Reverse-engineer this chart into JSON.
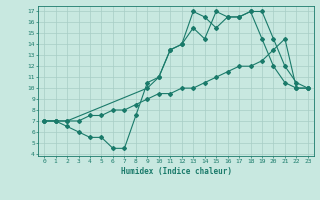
{
  "line1_x": [
    0,
    1,
    2,
    3,
    4,
    5,
    6,
    7,
    8,
    9,
    10,
    11,
    12,
    13,
    14,
    15,
    16,
    17,
    18,
    19,
    20,
    21,
    22,
    23
  ],
  "line1_y": [
    7,
    7,
    6.5,
    6,
    5.5,
    5.5,
    4.5,
    4.5,
    7.5,
    10.5,
    11,
    13.5,
    14,
    15.5,
    14.5,
    17,
    16.5,
    16.5,
    17,
    14.5,
    12,
    10.5,
    10,
    10
  ],
  "line2_x": [
    0,
    1,
    2,
    3,
    4,
    5,
    6,
    7,
    8,
    9,
    10,
    11,
    12,
    13,
    14,
    15,
    16,
    17,
    18,
    19,
    20,
    21,
    22,
    23
  ],
  "line2_y": [
    7,
    7,
    7,
    7,
    7.5,
    7.5,
    8,
    8,
    8.5,
    9,
    9.5,
    9.5,
    10,
    10,
    10.5,
    11,
    11.5,
    12,
    12,
    12.5,
    13.5,
    14.5,
    10,
    10
  ],
  "line3_x": [
    0,
    1,
    2,
    9,
    10,
    11,
    12,
    13,
    14,
    15,
    16,
    17,
    18,
    19,
    20,
    21,
    22,
    23
  ],
  "line3_y": [
    7,
    7,
    7,
    10,
    11,
    13.5,
    14,
    17,
    16.5,
    15.5,
    16.5,
    16.5,
    17,
    17,
    14.5,
    12,
    10.5,
    10
  ],
  "color": "#1a7a6a",
  "bg_color": "#c8e8e0",
  "grid_color": "#a8cdc6",
  "xlabel": "Humidex (Indice chaleur)",
  "ylim": [
    3.8,
    17.5
  ],
  "xlim": [
    -0.5,
    23.5
  ],
  "yticks": [
    4,
    5,
    6,
    7,
    8,
    9,
    10,
    11,
    12,
    13,
    14,
    15,
    16,
    17
  ],
  "xticks": [
    0,
    1,
    2,
    3,
    4,
    5,
    6,
    7,
    8,
    9,
    10,
    11,
    12,
    13,
    14,
    15,
    16,
    17,
    18,
    19,
    20,
    21,
    22,
    23
  ]
}
